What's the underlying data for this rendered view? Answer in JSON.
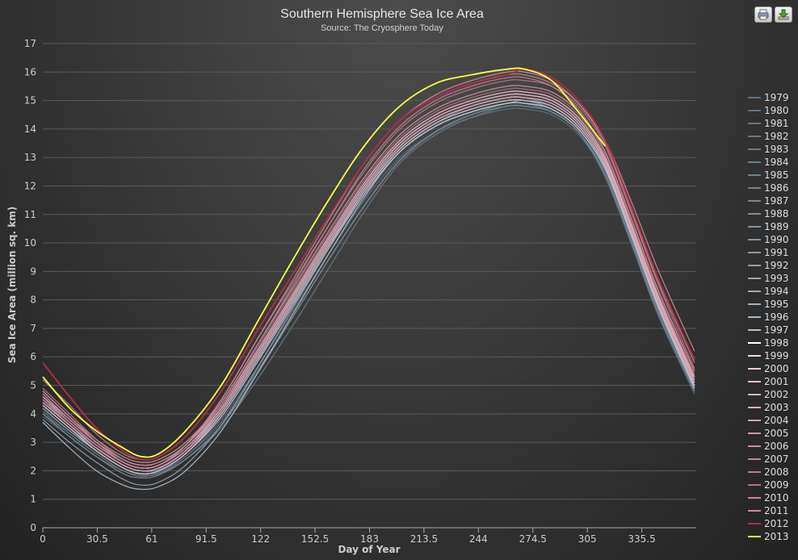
{
  "toolbar": {
    "print_icon": "printer-icon",
    "download_icon": "download-icon"
  },
  "colors": {
    "background": "#333333",
    "grid": "#5a5a5a",
    "text": "#dddddd",
    "highlight_2013": "#ffff44",
    "highlight_2012": "#b03040"
  },
  "chart_data": {
    "type": "line",
    "title": "Southern Hemisphere Sea Ice Area",
    "subtitle": "Source: The Cryosphere Today",
    "xlabel": "Day of Year",
    "ylabel": "Sea Ice Area (million sq. km)",
    "xlim": [
      0,
      366
    ],
    "ylim": [
      0,
      17
    ],
    "x_ticks": [
      "0",
      "30.5",
      "61",
      "91.5",
      "122",
      "152.5",
      "183",
      "213.5",
      "244",
      "274.5",
      "305",
      "335.5"
    ],
    "x_tick_values": [
      0,
      30.5,
      61,
      91.5,
      122,
      152.5,
      183,
      213.5,
      244,
      274.5,
      305,
      335.5
    ],
    "y_ticks": [
      "0",
      "1",
      "2",
      "3",
      "4",
      "5",
      "6",
      "7",
      "8",
      "9",
      "10",
      "11",
      "12",
      "13",
      "14",
      "15",
      "16",
      "17"
    ],
    "grid": true,
    "legend_position": "right",
    "x": [
      0,
      15,
      30,
      45,
      55,
      65,
      80,
      100,
      120,
      140,
      160,
      180,
      200,
      220,
      240,
      260,
      270,
      285,
      300,
      315,
      330,
      345,
      365
    ],
    "series": [
      {
        "name": "1979",
        "color": "#5f7180",
        "values": [
          3.9,
          3.2,
          2.5,
          2.0,
          1.85,
          1.9,
          2.5,
          3.8,
          5.6,
          7.6,
          9.6,
          11.5,
          13.0,
          13.9,
          14.4,
          14.7,
          14.7,
          14.5,
          13.8,
          12.4,
          10.0,
          7.5,
          4.8
        ]
      },
      {
        "name": "1980",
        "color": "#617381",
        "values": [
          4.2,
          3.4,
          2.7,
          2.1,
          1.9,
          2.0,
          2.6,
          4.0,
          5.9,
          7.9,
          9.9,
          11.8,
          13.2,
          14.1,
          14.6,
          14.9,
          14.9,
          14.7,
          14.0,
          12.6,
          10.2,
          7.7,
          5.0
        ]
      },
      {
        "name": "1981",
        "color": "#637583",
        "values": [
          4.0,
          3.3,
          2.6,
          2.0,
          1.8,
          1.95,
          2.5,
          3.7,
          5.5,
          7.4,
          9.4,
          11.3,
          12.9,
          13.9,
          14.5,
          14.9,
          14.9,
          14.6,
          13.9,
          12.3,
          9.9,
          7.4,
          4.7
        ]
      },
      {
        "name": "1982",
        "color": "#667886",
        "values": [
          4.3,
          3.5,
          2.8,
          2.2,
          2.0,
          2.05,
          2.7,
          4.1,
          6.0,
          8.0,
          10.0,
          11.9,
          13.4,
          14.3,
          14.8,
          15.1,
          15.1,
          14.9,
          14.2,
          12.8,
          10.4,
          7.9,
          5.1
        ]
      },
      {
        "name": "1983",
        "color": "#697b89",
        "values": [
          4.1,
          3.3,
          2.6,
          2.0,
          1.85,
          1.9,
          2.4,
          3.5,
          5.2,
          7.1,
          9.1,
          11.1,
          12.8,
          13.8,
          14.4,
          14.8,
          14.8,
          14.6,
          13.9,
          12.5,
          10.1,
          7.6,
          4.9
        ]
      },
      {
        "name": "1984",
        "color": "#6c7e8c",
        "values": [
          4.4,
          3.6,
          2.8,
          2.2,
          2.0,
          2.1,
          2.7,
          4.0,
          5.9,
          7.9,
          9.9,
          11.8,
          13.3,
          14.2,
          14.8,
          15.1,
          15.1,
          14.8,
          14.1,
          12.7,
          10.3,
          7.8,
          5.0
        ]
      },
      {
        "name": "1985",
        "color": "#6f8290",
        "values": [
          4.6,
          3.7,
          2.9,
          2.3,
          2.1,
          2.2,
          2.8,
          4.2,
          6.1,
          8.1,
          10.1,
          12.0,
          13.5,
          14.4,
          14.9,
          15.2,
          15.2,
          15.0,
          14.3,
          12.9,
          10.5,
          8.0,
          5.2
        ]
      },
      {
        "name": "1986",
        "color": "#728593",
        "values": [
          4.2,
          3.4,
          2.7,
          2.1,
          1.9,
          2.0,
          2.6,
          3.9,
          5.8,
          7.8,
          9.8,
          11.7,
          13.2,
          14.1,
          14.6,
          14.9,
          14.9,
          14.7,
          14.0,
          12.6,
          10.2,
          7.7,
          4.9
        ]
      },
      {
        "name": "1987",
        "color": "#768997",
        "values": [
          4.3,
          3.5,
          2.8,
          2.2,
          2.0,
          2.1,
          2.7,
          4.0,
          5.9,
          7.9,
          9.9,
          11.8,
          13.3,
          14.2,
          14.7,
          15.0,
          15.0,
          14.8,
          14.1,
          12.7,
          10.3,
          7.8,
          5.0
        ]
      },
      {
        "name": "1988",
        "color": "#7a8d9b",
        "values": [
          4.5,
          3.6,
          2.9,
          2.3,
          2.1,
          2.2,
          2.8,
          4.1,
          6.0,
          8.0,
          10.0,
          11.9,
          13.4,
          14.3,
          14.8,
          15.1,
          15.1,
          14.9,
          14.2,
          12.8,
          10.4,
          7.9,
          5.1
        ]
      },
      {
        "name": "1989",
        "color": "#7e91a0",
        "values": [
          4.0,
          3.2,
          2.5,
          1.9,
          1.75,
          1.85,
          2.4,
          3.6,
          5.4,
          7.4,
          9.4,
          11.3,
          12.9,
          13.9,
          14.5,
          14.8,
          14.8,
          14.6,
          13.9,
          12.4,
          10.0,
          7.5,
          4.8
        ]
      },
      {
        "name": "1990",
        "color": "#8296a5",
        "values": [
          4.4,
          3.6,
          2.8,
          2.2,
          2.0,
          2.1,
          2.7,
          4.0,
          5.9,
          7.9,
          9.9,
          11.8,
          13.3,
          14.2,
          14.7,
          15.0,
          15.0,
          14.8,
          14.1,
          12.7,
          10.3,
          7.8,
          5.0
        ]
      },
      {
        "name": "1991",
        "color": "#879baa",
        "values": [
          4.3,
          3.5,
          2.7,
          2.1,
          1.9,
          2.0,
          2.6,
          3.9,
          5.8,
          7.8,
          9.8,
          11.7,
          13.2,
          14.1,
          14.6,
          14.9,
          15.0,
          14.7,
          14.0,
          12.6,
          10.2,
          7.7,
          4.9
        ]
      },
      {
        "name": "1992",
        "color": "#8ca0af",
        "values": [
          4.2,
          3.4,
          2.7,
          2.1,
          1.9,
          2.0,
          2.6,
          3.9,
          5.8,
          7.8,
          9.8,
          11.7,
          13.2,
          14.1,
          14.6,
          14.9,
          14.9,
          14.7,
          14.0,
          12.6,
          10.2,
          7.7,
          4.9
        ]
      },
      {
        "name": "1993",
        "color": "#92a6b5",
        "values": [
          3.8,
          3.0,
          2.3,
          1.7,
          1.5,
          1.6,
          2.2,
          3.6,
          5.6,
          7.7,
          9.8,
          11.8,
          13.3,
          14.2,
          14.7,
          15.0,
          15.0,
          14.8,
          14.1,
          12.7,
          10.3,
          7.8,
          5.0
        ]
      },
      {
        "name": "1994",
        "color": "#98acbb",
        "values": [
          4.5,
          3.7,
          2.9,
          2.3,
          2.1,
          2.2,
          2.8,
          4.1,
          6.0,
          8.0,
          10.0,
          11.9,
          13.4,
          14.3,
          14.8,
          15.1,
          15.1,
          14.9,
          14.2,
          12.8,
          10.4,
          7.9,
          5.1
        ]
      },
      {
        "name": "1995",
        "color": "#9fb2c1",
        "values": [
          4.6,
          3.7,
          2.9,
          2.3,
          2.1,
          2.2,
          2.8,
          4.2,
          6.1,
          8.1,
          10.1,
          12.0,
          13.5,
          14.4,
          14.9,
          15.2,
          15.2,
          15.0,
          14.3,
          12.9,
          10.5,
          8.0,
          5.2
        ]
      },
      {
        "name": "1996",
        "color": "#a8bac8",
        "values": [
          4.3,
          3.5,
          2.7,
          2.1,
          1.9,
          2.0,
          2.6,
          3.9,
          5.8,
          7.8,
          9.8,
          11.7,
          13.2,
          14.1,
          14.6,
          14.9,
          14.9,
          14.7,
          14.0,
          12.6,
          10.2,
          7.7,
          4.9
        ]
      },
      {
        "name": "1997",
        "color": "#b4c4d0",
        "values": [
          3.7,
          2.8,
          2.0,
          1.5,
          1.35,
          1.45,
          2.0,
          3.4,
          5.4,
          7.5,
          9.6,
          11.6,
          13.2,
          14.1,
          14.6,
          14.9,
          14.9,
          14.7,
          14.0,
          12.6,
          10.2,
          7.7,
          4.9
        ]
      },
      {
        "name": "1998",
        "color": "#ffffff",
        "values": [
          4.4,
          3.6,
          2.8,
          2.2,
          2.0,
          2.1,
          2.7,
          4.1,
          6.0,
          8.0,
          10.0,
          11.9,
          13.4,
          14.3,
          14.8,
          15.1,
          15.1,
          14.9,
          14.2,
          12.8,
          10.4,
          7.9,
          5.1
        ]
      },
      {
        "name": "1999",
        "color": "#f4d4dc",
        "values": [
          4.5,
          3.7,
          2.9,
          2.3,
          2.1,
          2.2,
          2.8,
          4.2,
          6.1,
          8.1,
          10.1,
          12.0,
          13.5,
          14.4,
          14.9,
          15.2,
          15.2,
          15.0,
          14.3,
          12.9,
          10.5,
          8.0,
          5.2
        ]
      },
      {
        "name": "2000",
        "color": "#eecad4",
        "values": [
          4.4,
          3.6,
          2.8,
          2.2,
          2.0,
          2.1,
          2.7,
          4.1,
          6.0,
          8.0,
          10.0,
          11.9,
          13.4,
          14.3,
          14.8,
          15.1,
          15.1,
          14.9,
          14.2,
          12.8,
          10.4,
          7.9,
          5.1
        ]
      },
      {
        "name": "2001",
        "color": "#e8c0cb",
        "values": [
          4.6,
          3.8,
          3.0,
          2.4,
          2.2,
          2.3,
          2.9,
          4.3,
          6.2,
          8.2,
          10.2,
          12.1,
          13.6,
          14.5,
          15.0,
          15.3,
          15.3,
          15.1,
          14.4,
          13.0,
          10.6,
          8.1,
          5.3
        ]
      },
      {
        "name": "2002",
        "color": "#e2b6c2",
        "values": [
          4.3,
          3.5,
          2.7,
          2.1,
          1.9,
          2.0,
          2.6,
          4.0,
          5.9,
          7.9,
          9.9,
          11.8,
          13.3,
          14.2,
          14.7,
          15.0,
          15.0,
          14.8,
          14.1,
          12.7,
          10.3,
          7.8,
          5.0
        ]
      },
      {
        "name": "2003",
        "color": "#dcacb9",
        "values": [
          4.7,
          3.8,
          3.0,
          2.4,
          2.2,
          2.3,
          2.9,
          4.3,
          6.2,
          8.2,
          10.2,
          12.1,
          13.6,
          14.5,
          15.0,
          15.3,
          15.3,
          15.1,
          14.4,
          13.0,
          10.6,
          8.1,
          5.3
        ]
      },
      {
        "name": "2004",
        "color": "#d6a2b0",
        "values": [
          4.5,
          3.7,
          2.9,
          2.3,
          2.1,
          2.2,
          2.8,
          4.2,
          6.1,
          8.1,
          10.1,
          12.0,
          13.5,
          14.4,
          14.9,
          15.2,
          15.2,
          15.0,
          14.3,
          12.9,
          10.5,
          8.0,
          5.2
        ]
      },
      {
        "name": "2005",
        "color": "#d098a6",
        "values": [
          4.8,
          3.9,
          3.1,
          2.5,
          2.3,
          2.4,
          3.0,
          4.4,
          6.4,
          8.4,
          10.4,
          12.3,
          13.8,
          14.7,
          15.2,
          15.5,
          15.5,
          15.3,
          14.6,
          13.2,
          10.8,
          8.3,
          5.5
        ]
      },
      {
        "name": "2006",
        "color": "#ca8e9d",
        "values": [
          4.4,
          3.6,
          2.8,
          2.2,
          2.0,
          2.1,
          2.7,
          4.1,
          6.0,
          8.0,
          10.0,
          11.9,
          13.4,
          14.3,
          14.8,
          15.1,
          15.1,
          14.9,
          14.2,
          12.8,
          10.4,
          7.9,
          5.1
        ]
      },
      {
        "name": "2007",
        "color": "#c48494",
        "values": [
          4.6,
          3.8,
          3.0,
          2.4,
          2.2,
          2.3,
          2.9,
          4.4,
          6.4,
          8.5,
          10.6,
          12.6,
          14.1,
          15.0,
          15.5,
          15.8,
          15.8,
          15.5,
          14.7,
          13.2,
          10.8,
          8.3,
          5.5
        ]
      },
      {
        "name": "2008",
        "color": "#be7a8b",
        "values": [
          4.9,
          4.0,
          3.1,
          2.4,
          2.2,
          2.3,
          2.9,
          4.5,
          6.6,
          8.6,
          10.6,
          12.5,
          14.0,
          14.9,
          15.4,
          15.7,
          15.7,
          15.5,
          14.8,
          13.4,
          11.0,
          8.5,
          5.6
        ]
      },
      {
        "name": "2009",
        "color": "#b87082",
        "values": [
          4.5,
          3.7,
          2.9,
          2.3,
          2.1,
          2.2,
          2.8,
          4.3,
          6.3,
          8.3,
          10.3,
          12.2,
          13.7,
          14.6,
          15.1,
          15.4,
          15.4,
          15.2,
          14.5,
          13.1,
          10.7,
          8.2,
          5.4
        ]
      },
      {
        "name": "2010",
        "color": "#c7889a",
        "values": [
          5.2,
          4.3,
          3.3,
          2.6,
          2.4,
          2.5,
          3.2,
          4.8,
          6.9,
          8.9,
          10.9,
          12.8,
          14.3,
          15.1,
          15.6,
          15.9,
          15.9,
          15.6,
          14.9,
          13.5,
          11.1,
          8.6,
          5.8
        ]
      },
      {
        "name": "2011",
        "color": "#d18a9a",
        "values": [
          4.8,
          3.9,
          3.0,
          2.3,
          2.1,
          2.2,
          2.9,
          4.5,
          6.6,
          8.7,
          10.8,
          12.8,
          14.3,
          15.2,
          15.7,
          16.0,
          16.0,
          15.7,
          14.9,
          13.6,
          11.4,
          9.0,
          6.2
        ]
      },
      {
        "name": "2012",
        "color": "#b03040",
        "values": [
          5.8,
          4.6,
          3.5,
          2.7,
          2.4,
          2.5,
          3.2,
          4.8,
          6.9,
          8.9,
          10.9,
          12.8,
          14.3,
          15.1,
          15.6,
          15.9,
          16.1,
          15.8,
          15.0,
          13.6,
          11.2,
          8.7,
          5.9
        ]
      },
      {
        "name": "2013",
        "color": "#ffff44",
        "values": [
          5.3,
          4.2,
          3.4,
          2.8,
          2.5,
          2.6,
          3.4,
          5.0,
          7.2,
          9.4,
          11.5,
          13.4,
          14.8,
          15.6,
          15.9,
          16.1,
          16.1,
          15.7,
          14.6,
          13.4,
          null,
          null,
          null
        ]
      }
    ]
  }
}
